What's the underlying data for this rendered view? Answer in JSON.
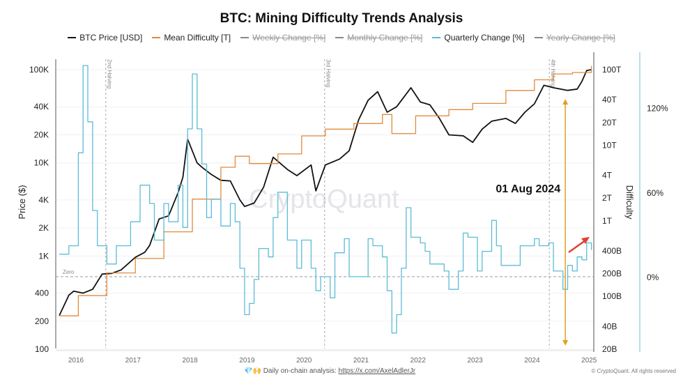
{
  "chart_data": {
    "type": "line",
    "title": "BTC: Mining Difficulty Trends Analysis",
    "legend": [
      {
        "name": "BTC Price [USD]",
        "color": "#111111",
        "active": true
      },
      {
        "name": "Mean Difficulty [T]",
        "color": "#e08a3c",
        "active": true
      },
      {
        "name": "Weekly Change [%]",
        "color": "#888888",
        "active": false
      },
      {
        "name": "Monthly Change [%]",
        "color": "#888888",
        "active": false
      },
      {
        "name": "Quarterly Change [%]",
        "color": "#5bbcd6",
        "active": true
      },
      {
        "name": "Yearly Change [%]",
        "color": "#888888",
        "active": false
      }
    ],
    "legend_position": "top",
    "x_ticks": [
      "2016",
      "2017",
      "2018",
      "2019",
      "2020",
      "2021",
      "2022",
      "2023",
      "2024",
      "2025"
    ],
    "y_left": {
      "label": "Price ($)",
      "scale": "log",
      "range": [
        100,
        100000
      ],
      "ticks": [
        {
          "v": 100000,
          "t": "100K"
        },
        {
          "v": 40000,
          "t": "40K"
        },
        {
          "v": 20000,
          "t": "20K"
        },
        {
          "v": 10000,
          "t": "10K"
        },
        {
          "v": 4000,
          "t": "4K"
        },
        {
          "v": 2000,
          "t": "2K"
        },
        {
          "v": 1000,
          "t": "1K"
        },
        {
          "v": 400,
          "t": "400"
        },
        {
          "v": 200,
          "t": "200"
        },
        {
          "v": 100,
          "t": "100"
        }
      ]
    },
    "y_right": {
      "label": "Difficulty",
      "scale": "log",
      "unit": "T",
      "range": [
        0.02,
        100
      ],
      "ticks": [
        {
          "v": 100,
          "t": "100T"
        },
        {
          "v": 40,
          "t": "40T"
        },
        {
          "v": 20,
          "t": "20T"
        },
        {
          "v": 10,
          "t": "10T"
        },
        {
          "v": 4,
          "t": "4T"
        },
        {
          "v": 2,
          "t": "2T"
        },
        {
          "v": 1,
          "t": "1T"
        },
        {
          "v": 0.4,
          "t": "400B"
        },
        {
          "v": 0.2,
          "t": "200B"
        },
        {
          "v": 0.1,
          "t": "100B"
        },
        {
          "v": 0.04,
          "t": "40B"
        },
        {
          "v": 0.02,
          "t": "20B"
        }
      ]
    },
    "y_right2": {
      "label": "",
      "range": [
        -51,
        155
      ],
      "ticks": [
        {
          "v": 120,
          "t": "120%"
        },
        {
          "v": 60,
          "t": "60%"
        },
        {
          "v": 0,
          "t": "0%"
        }
      ]
    },
    "grid": true,
    "series": [
      {
        "name": "BTC Price [USD]",
        "axis": "left",
        "color": "#111111",
        "points": [
          [
            "2015-09",
            230
          ],
          [
            "2015-11",
            380
          ],
          [
            "2015-12",
            420
          ],
          [
            "2016-02",
            400
          ],
          [
            "2016-04",
            440
          ],
          [
            "2016-06",
            640
          ],
          [
            "2016-08",
            650
          ],
          [
            "2016-10",
            710
          ],
          [
            "2017-01",
            970
          ],
          [
            "2017-03",
            1100
          ],
          [
            "2017-04",
            1300
          ],
          [
            "2017-06",
            2500
          ],
          [
            "2017-08",
            2700
          ],
          [
            "2017-10",
            4800
          ],
          [
            "2017-11",
            7000
          ],
          [
            "2017-12",
            18000
          ],
          [
            "2018-02",
            10000
          ],
          [
            "2018-03",
            9000
          ],
          [
            "2018-05",
            7500
          ],
          [
            "2018-07",
            6500
          ],
          [
            "2018-09",
            6400
          ],
          [
            "2018-11",
            4000
          ],
          [
            "2018-12",
            3400
          ],
          [
            "2019-02",
            3700
          ],
          [
            "2019-04",
            5500
          ],
          [
            "2019-06",
            11500
          ],
          [
            "2019-09",
            8500
          ],
          [
            "2019-11",
            7300
          ],
          [
            "2020-02",
            9500
          ],
          [
            "2020-03",
            5000
          ],
          [
            "2020-05",
            9500
          ],
          [
            "2020-08",
            11000
          ],
          [
            "2020-10",
            13500
          ],
          [
            "2020-12",
            29000
          ],
          [
            "2021-02",
            47000
          ],
          [
            "2021-04",
            58000
          ],
          [
            "2021-06",
            35000
          ],
          [
            "2021-08",
            40000
          ],
          [
            "2021-11",
            64000
          ],
          [
            "2022-01",
            45000
          ],
          [
            "2022-03",
            42000
          ],
          [
            "2022-05",
            30000
          ],
          [
            "2022-07",
            20000
          ],
          [
            "2022-10",
            19500
          ],
          [
            "2022-12",
            16600
          ],
          [
            "2023-02",
            23000
          ],
          [
            "2023-04",
            28000
          ],
          [
            "2023-07",
            30000
          ],
          [
            "2023-09",
            26500
          ],
          [
            "2023-11",
            35000
          ],
          [
            "2024-01",
            43000
          ],
          [
            "2024-03",
            68000
          ],
          [
            "2024-05",
            64000
          ],
          [
            "2024-08",
            60000
          ],
          [
            "2024-10",
            62000
          ],
          [
            "2024-11",
            75000
          ],
          [
            "2024-12",
            98000
          ],
          [
            "2025-01",
            100000
          ]
        ]
      },
      {
        "name": "Mean Difficulty [T]",
        "axis": "right",
        "color": "#e08a3c",
        "points": [
          [
            "2015-09",
            0.054
          ],
          [
            "2016-01",
            0.1
          ],
          [
            "2016-07",
            0.2
          ],
          [
            "2017-01",
            0.31
          ],
          [
            "2017-07",
            0.7
          ],
          [
            "2018-01",
            1.9
          ],
          [
            "2018-07",
            5
          ],
          [
            "2018-10",
            7
          ],
          [
            "2019-01",
            5.6
          ],
          [
            "2019-07",
            7.5
          ],
          [
            "2019-12",
            13
          ],
          [
            "2020-05",
            16
          ],
          [
            "2020-11",
            19
          ],
          [
            "2021-05",
            25
          ],
          [
            "2021-07",
            14
          ],
          [
            "2021-12",
            24
          ],
          [
            "2022-07",
            29
          ],
          [
            "2022-12",
            35
          ],
          [
            "2023-07",
            52
          ],
          [
            "2024-01",
            72
          ],
          [
            "2024-05",
            86
          ],
          [
            "2024-09",
            90
          ],
          [
            "2025-01",
            110
          ]
        ]
      },
      {
        "name": "Quarterly Change [%]",
        "axis": "right2",
        "color": "#5bbcd6",
        "points": [
          [
            "2015-09",
            16
          ],
          [
            "2015-11",
            22
          ],
          [
            "2016-01",
            88
          ],
          [
            "2016-02",
            138
          ],
          [
            "2016-02",
            150
          ],
          [
            "2016-03",
            110
          ],
          [
            "2016-04",
            47
          ],
          [
            "2016-05",
            22
          ],
          [
            "2016-07",
            9
          ],
          [
            "2016-09",
            22
          ],
          [
            "2016-12",
            39
          ],
          [
            "2017-02",
            65
          ],
          [
            "2017-04",
            52
          ],
          [
            "2017-05",
            26
          ],
          [
            "2017-07",
            52
          ],
          [
            "2017-08",
            39
          ],
          [
            "2017-10",
            65
          ],
          [
            "2017-11",
            35
          ],
          [
            "2017-12",
            105
          ],
          [
            "2018-01",
            144
          ],
          [
            "2018-02",
            105
          ],
          [
            "2018-03",
            80
          ],
          [
            "2018-04",
            42
          ],
          [
            "2018-05",
            55
          ],
          [
            "2018-07",
            36
          ],
          [
            "2018-09",
            52
          ],
          [
            "2018-10",
            39
          ],
          [
            "2018-11",
            6
          ],
          [
            "2018-12",
            -27
          ],
          [
            "2019-01",
            -19
          ],
          [
            "2019-02",
            -2
          ],
          [
            "2019-03",
            20
          ],
          [
            "2019-05",
            14
          ],
          [
            "2019-06",
            42
          ],
          [
            "2019-07",
            60
          ],
          [
            "2019-09",
            26
          ],
          [
            "2019-11",
            6
          ],
          [
            "2019-12",
            26
          ],
          [
            "2020-02",
            6
          ],
          [
            "2020-03",
            -10
          ],
          [
            "2020-04",
            0
          ],
          [
            "2020-06",
            -15
          ],
          [
            "2020-07",
            17
          ],
          [
            "2020-09",
            27
          ],
          [
            "2020-10",
            0
          ],
          [
            "2021-02",
            27
          ],
          [
            "2021-03",
            22
          ],
          [
            "2021-05",
            14
          ],
          [
            "2021-06",
            -10
          ],
          [
            "2021-07",
            -40
          ],
          [
            "2021-08",
            -27
          ],
          [
            "2021-09",
            6
          ],
          [
            "2021-10",
            49
          ],
          [
            "2021-11",
            28
          ],
          [
            "2022-01",
            24
          ],
          [
            "2022-02",
            18
          ],
          [
            "2022-03",
            9
          ],
          [
            "2022-06",
            4
          ],
          [
            "2022-07",
            -9
          ],
          [
            "2022-09",
            4
          ],
          [
            "2022-10",
            31
          ],
          [
            "2022-11",
            28
          ],
          [
            "2023-01",
            4
          ],
          [
            "2023-02",
            18
          ],
          [
            "2023-04",
            40
          ],
          [
            "2023-05",
            22
          ],
          [
            "2023-06",
            8
          ],
          [
            "2023-08",
            8
          ],
          [
            "2023-10",
            22
          ],
          [
            "2024-01",
            27
          ],
          [
            "2024-02",
            22
          ],
          [
            "2024-04",
            24
          ],
          [
            "2024-05",
            4
          ],
          [
            "2024-07",
            -9
          ],
          [
            "2024-08",
            8
          ],
          [
            "2024-09",
            4
          ],
          [
            "2024-10",
            14
          ],
          [
            "2024-11",
            12
          ],
          [
            "2024-12",
            24
          ],
          [
            "2025-01",
            19
          ]
        ]
      }
    ],
    "annotations": {
      "halvings": [
        {
          "date": "2016-07-09",
          "label": "2nd Halving"
        },
        {
          "date": "2020-05-11",
          "label": "3rd Halving"
        },
        {
          "date": "2024-04-20",
          "label": "4th Halving"
        }
      ],
      "zero_line_label": "Zero",
      "marker_date": "2024-08-01",
      "marker_label": "01 Aug 2024",
      "marker_color": "#e0a020",
      "trend_arrow_color": "#e04030"
    }
  },
  "watermark": "CryptoQuant",
  "footer": {
    "icons": "💎🙌",
    "text": "Daily on-chain analysis: ",
    "link": "https://x.com/AxelAdlerJr"
  },
  "copyright": "© CryptoQuant. All rights reserved"
}
